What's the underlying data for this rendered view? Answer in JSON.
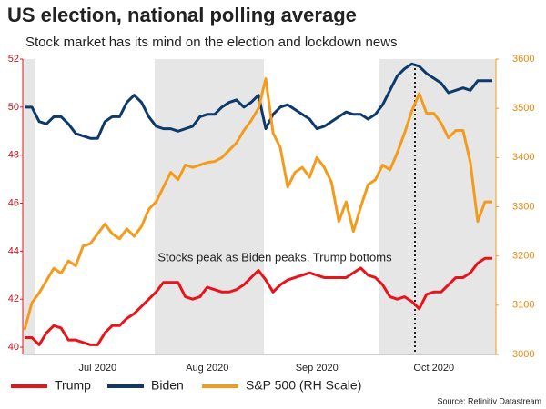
{
  "chart_data": {
    "type": "line",
    "title": "US election, national polling average",
    "subtitle": "Stock market has its mind on the election and lockdown news",
    "annotation": "Stocks peak as Biden peaks, Trump bottoms",
    "source": "Source: Refinitiv Datastream",
    "categories": [
      null,
      null,
      null,
      null,
      null,
      null,
      null,
      null,
      null,
      null,
      "Jul 2020",
      null,
      null,
      null,
      null,
      null,
      null,
      null,
      null,
      null,
      null,
      null,
      null,
      null,
      null,
      "Aug 2020",
      null,
      null,
      null,
      null,
      null,
      null,
      null,
      null,
      null,
      null,
      null,
      null,
      null,
      null,
      "Sep 2020",
      null,
      null,
      null,
      null,
      null,
      null,
      null,
      null,
      null,
      null,
      null,
      null,
      null,
      null,
      null,
      "Oct 2020",
      null,
      null,
      null,
      null,
      null,
      null,
      null,
      null
    ],
    "ylim": [
      39.7,
      52
    ],
    "yticks": [
      40,
      42,
      44,
      46,
      48,
      50,
      52
    ],
    "y2lim": [
      3000,
      3600
    ],
    "y2ticks": [
      3000,
      3100,
      3200,
      3300,
      3400,
      3500,
      3600
    ],
    "series": [
      {
        "name": "Trump",
        "color": "#e8141b",
        "values": [
          40.4,
          40.4,
          40.1,
          40.6,
          40.9,
          40.8,
          40.3,
          40.3,
          40.2,
          40.1,
          40.1,
          40.6,
          40.9,
          40.9,
          41.2,
          41.4,
          41.7,
          42.0,
          42.3,
          42.7,
          42.7,
          42.7,
          42.1,
          42.0,
          42.1,
          42.5,
          42.4,
          42.3,
          42.3,
          42.4,
          42.6,
          42.9,
          43.2,
          42.8,
          42.3,
          42.6,
          42.8,
          42.9,
          43.0,
          43.1,
          43.0,
          42.9,
          42.9,
          42.9,
          42.9,
          43.1,
          43.3,
          43.0,
          42.9,
          42.6,
          42.1,
          42.0,
          42.1,
          41.9,
          41.6,
          42.2,
          42.3,
          42.3,
          42.6,
          42.9,
          42.9,
          43.1,
          43.5,
          43.7,
          43.7
        ]
      },
      {
        "name": "Biden",
        "color": "#0d3a6b",
        "values": [
          50.0,
          50.0,
          49.4,
          49.3,
          49.6,
          49.6,
          49.3,
          48.9,
          48.8,
          48.7,
          48.7,
          49.4,
          49.6,
          49.6,
          50.2,
          50.5,
          50.2,
          49.6,
          49.2,
          49.1,
          49.1,
          49.0,
          49.1,
          49.2,
          49.6,
          49.7,
          49.7,
          50.0,
          50.2,
          50.3,
          50.0,
          50.2,
          50.5,
          49.1,
          49.7,
          50.0,
          50.1,
          49.9,
          49.7,
          49.5,
          49.1,
          49.2,
          49.4,
          49.6,
          49.8,
          49.7,
          49.7,
          49.5,
          49.7,
          50.1,
          50.7,
          51.3,
          51.6,
          51.8,
          51.7,
          51.4,
          51.2,
          51.0,
          50.6,
          50.7,
          50.8,
          50.7,
          51.1,
          51.1,
          51.1
        ]
      },
      {
        "name": "S&P 500 (RH Scale)",
        "color": "#f59b1c",
        "axis": "y2",
        "values": [
          3050,
          3105,
          3125,
          3150,
          3175,
          3165,
          3190,
          3180,
          3220,
          3225,
          3245,
          3265,
          3245,
          3235,
          3255,
          3240,
          3260,
          3295,
          3310,
          3340,
          3370,
          3355,
          3385,
          3380,
          3385,
          3390,
          3392,
          3400,
          3415,
          3430,
          3455,
          3475,
          3500,
          3560,
          3450,
          3420,
          3340,
          3370,
          3380,
          3360,
          3400,
          3380,
          3350,
          3270,
          3310,
          3250,
          3300,
          3345,
          3355,
          3385,
          3375,
          3410,
          3450,
          3495,
          3530,
          3490,
          3490,
          3470,
          3440,
          3455,
          3455,
          3390,
          3270,
          3310,
          3310
        ]
      }
    ]
  }
}
